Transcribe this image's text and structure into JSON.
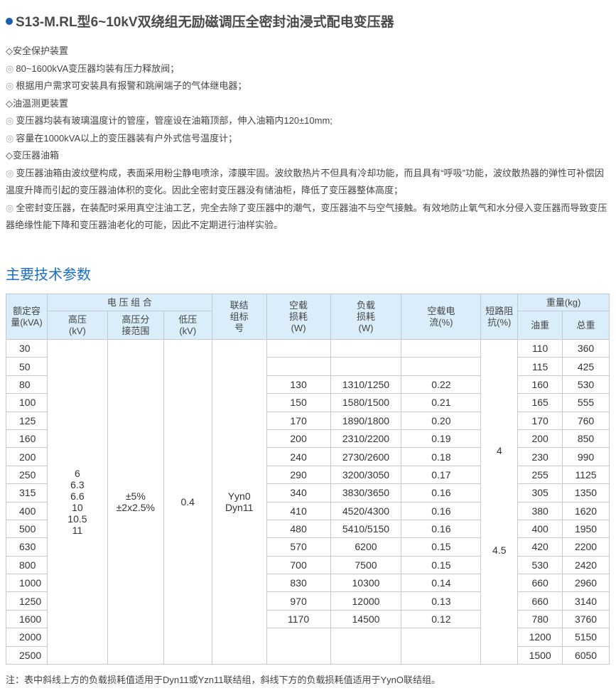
{
  "title": "S13-M.RL型6~10kV双绕组无励磁调压全密封油浸式配电变压器",
  "colors": {
    "accent": "#1a6fc4",
    "header_bg": "#d9eefa"
  },
  "sections": [
    {
      "heading": "◇安全保护装置",
      "items": [
        "80~1600kVA变压器均装有压力释放阀；",
        "根据用户需求可安装具有报警和跳闸端子的气体继电器；"
      ]
    },
    {
      "heading": "◇油温测更装置",
      "items": [
        "变压器均装有玻璃温度计的管座，管座设在油箱顶部，伸入油箱内120±10mm;",
        "容量在1000kVA以上的变压器装有户外式信号温度计；"
      ]
    },
    {
      "heading": "◇变压器油箱",
      "items": [
        "变压器油箱由波纹壁构成，表面采用粉尘静电喷涂，漆膜牢固。波纹散热片不但具有冷却功能，而且具有“呼吸”功能，波纹散热器的弹性可补偿因温度升降而引起的变压器油体积的变化。因此全密封变压器没有储油柜，降低了变压器整体高度；",
        "全密封变压器，在装配时采用真空注油工艺，完全去除了变压器中的潮气，变压器油不与空气接触。有效地防止氧气和水分侵入变压器而导致变压器绝缘性能下降和变压器油老化的可能，因此不定期进行油样实验。"
      ]
    }
  ],
  "section_title": "主要技术参数",
  "table": {
    "headers": {
      "capacity": "额定容量(kVA)",
      "voltage": "电 压 组 合",
      "hv": "高压(kV)",
      "tap": "高压分接范围",
      "lv": "低压(kV)",
      "group": "联结组标号",
      "noload_loss": "空载损耗(W)",
      "load_loss": "负载损耗(W)",
      "noload_current": "空载电流(%)",
      "impedance": "短路阻抗(%)",
      "weight": "重量(kg)",
      "oil": "油重",
      "total": "总重"
    },
    "hv": "6\n6.3\n6.6\n10\n10.5\n11",
    "tap": "±5%\n±2x2.5%",
    "lv": "0.4",
    "group": "Yyn0\nDyn11",
    "impedance": [
      "4",
      "4.5"
    ],
    "rows": [
      [
        "30",
        "",
        "",
        "",
        "110",
        "360"
      ],
      [
        "50",
        "",
        "",
        "",
        "115",
        "425"
      ],
      [
        "80",
        "130",
        "1310/1250",
        "0.22",
        "160",
        "530"
      ],
      [
        "100",
        "150",
        "1580/1500",
        "0.21",
        "165",
        "555"
      ],
      [
        "125",
        "170",
        "1890/1800",
        "0.20",
        "170",
        "760"
      ],
      [
        "160",
        "200",
        "2310/2200",
        "0.19",
        "200",
        "850"
      ],
      [
        "200",
        "240",
        "2730/2600",
        "0.18",
        "230",
        "990"
      ],
      [
        "250",
        "290",
        "3200/3050",
        "0.17",
        "255",
        "1125"
      ],
      [
        "315",
        "340",
        "3830/3650",
        "0.16",
        "305",
        "1350"
      ],
      [
        "400",
        "410",
        "4520/4300",
        "0.16",
        "380",
        "1620"
      ],
      [
        "500",
        "480",
        "5410/5150",
        "0.16",
        "400",
        "1950"
      ],
      [
        "630",
        "570",
        "6200",
        "0.15",
        "420",
        "2200"
      ],
      [
        "800",
        "700",
        "7500",
        "0.15",
        "530",
        "2420"
      ],
      [
        "1000",
        "830",
        "10300",
        "0.14",
        "660",
        "2960"
      ],
      [
        "1250",
        "970",
        "12000",
        "0.13",
        "660",
        "3140"
      ],
      [
        "1600",
        "1170",
        "14500",
        "0.12",
        "780",
        "3760"
      ],
      [
        "2000",
        "",
        "",
        "",
        "1200",
        "5150"
      ],
      [
        "2500",
        "",
        "",
        "",
        "1500",
        "6050"
      ]
    ]
  },
  "note": "注：表中斜线上方的负载损耗值适用于Dyn11或Yzn11联结组，斜线下方的负载损耗值适用于YynO联结组。"
}
